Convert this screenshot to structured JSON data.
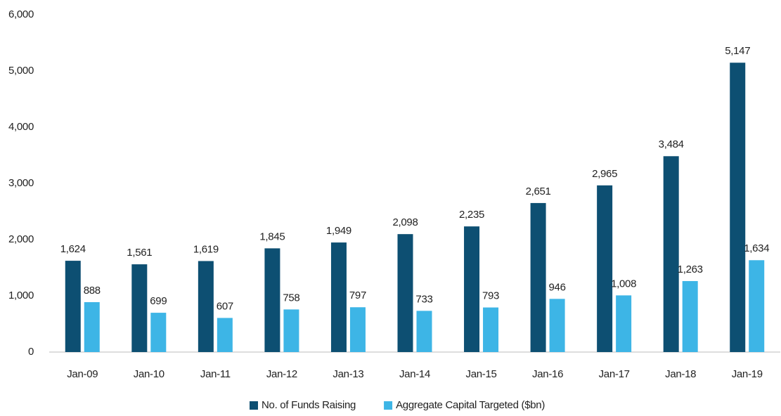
{
  "chart_data": {
    "type": "bar",
    "categories": [
      "Jan-09",
      "Jan-10",
      "Jan-11",
      "Jan-12",
      "Jan-13",
      "Jan-14",
      "Jan-15",
      "Jan-16",
      "Jan-17",
      "Jan-18",
      "Jan-19"
    ],
    "series": [
      {
        "name": "No. of Funds Raising",
        "color": "#0d4f72",
        "values": [
          1624,
          1561,
          1619,
          1845,
          1949,
          2098,
          2235,
          2651,
          2965,
          3484,
          5147
        ],
        "value_labels": [
          "1,624",
          "1,561",
          "1,619",
          "1,845",
          "1,949",
          "2,098",
          "2,235",
          "2,651",
          "2,965",
          "3,484",
          "5,147"
        ]
      },
      {
        "name": "Aggregate Capital Targeted ($bn)",
        "color": "#3db5e6",
        "values": [
          888,
          699,
          607,
          758,
          797,
          733,
          793,
          946,
          1008,
          1263,
          1634
        ],
        "value_labels": [
          "888",
          "699",
          "607",
          "758",
          "797",
          "733",
          "793",
          "946",
          "1,008",
          "1,263",
          "1,634"
        ]
      }
    ],
    "ylim": [
      0,
      6000
    ],
    "yticks": [
      0,
      {
        "value": 1000,
        "label": "1,000"
      },
      {
        "value": 2000,
        "label": "2,000"
      },
      {
        "value": 3000,
        "label": "3,000"
      },
      {
        "value": 4000,
        "label": "4,000"
      },
      {
        "value": 5000,
        "label": "5,000"
      },
      {
        "value": 6000,
        "label": "6,000"
      }
    ],
    "grid": false,
    "legend": "bottom"
  }
}
